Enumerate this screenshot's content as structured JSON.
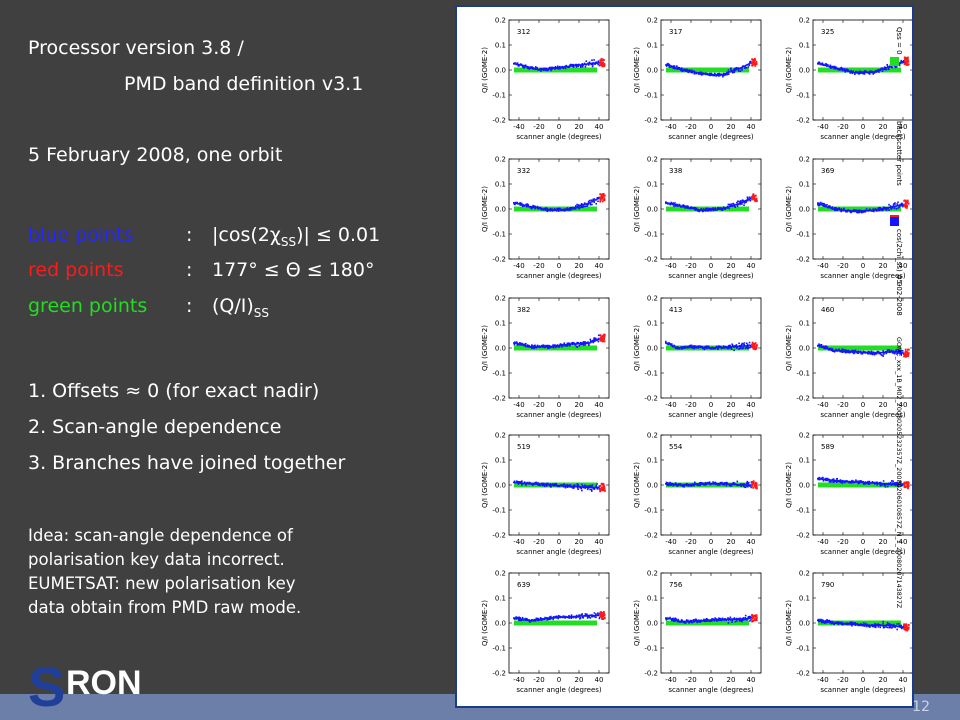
{
  "text": {
    "line1": "Processor version 3.8 /",
    "line2": "PMD band definition v3.1",
    "line3": "5 February 2008, one orbit",
    "legend": [
      {
        "name": "blue points",
        "sep": ":",
        "expr_pre": "|cos(2χ",
        "sub": "SS",
        "expr_post": ")| ≤ 0.01",
        "color": "#2525ff"
      },
      {
        "name": "red points",
        "sep": ":",
        "expr_pre": "177° ≤ Θ ≤ 180°",
        "sub": "",
        "expr_post": "",
        "color": "#ff1a1a"
      },
      {
        "name": "green points",
        "sep": ":",
        "expr_pre": "(Q/I)",
        "sub": "SS",
        "expr_post": "",
        "color": "#22dd22"
      }
    ],
    "points": [
      "1. Offsets ≈ 0  (for exact nadir)",
      "2. Scan-angle dependence",
      "3. Branches have joined together"
    ],
    "idea": [
      "Idea: scan-angle dependence of",
      "polarisation key data incorrect.",
      "EUMETSAT: new polarisation key",
      "data obtain from PMD raw mode."
    ],
    "logo_s": "S",
    "logo_rest": "RON",
    "page_number": "12"
  },
  "chart_data": {
    "type": "scatter",
    "xlabel": "scanner angle (degrees)",
    "ylabel": "Q/I (GOME-2)",
    "xlim": [
      -50,
      50
    ],
    "ylim": [
      -0.2,
      0.2
    ],
    "xticks": [
      -40,
      -20,
      0,
      20,
      40
    ],
    "yticks": [
      -0.2,
      -0.1,
      0.0,
      0.1,
      0.2
    ],
    "side_labels": {
      "legend": [
        "Qss = 0",
        "backscatter points",
        "cos(2chi_ss) = 0"
      ],
      "date": "05-02-2008",
      "file": "GOME_xxx_1B_M02_20080205232357Z_20080206010857Z_N_1_20080207143827Z"
    },
    "legend_colors": [
      "#22dd22",
      "#ff1a1a",
      "#1414ff"
    ],
    "panels": [
      {
        "label": "312",
        "curve": [
          [
            -45,
            0.025
          ],
          [
            -35,
            0.015
          ],
          [
            -20,
            0.0
          ],
          [
            0,
            0.01
          ],
          [
            20,
            0.02
          ],
          [
            40,
            0.03
          ]
        ],
        "green": 0.0
      },
      {
        "label": "317",
        "curve": [
          [
            -45,
            0.02
          ],
          [
            -30,
            0.0
          ],
          [
            -10,
            -0.015
          ],
          [
            10,
            -0.02
          ],
          [
            30,
            0.01
          ],
          [
            40,
            0.03
          ]
        ],
        "green": 0.0
      },
      {
        "label": "325",
        "curve": [
          [
            -45,
            0.025
          ],
          [
            -30,
            0.01
          ],
          [
            -10,
            -0.01
          ],
          [
            10,
            -0.01
          ],
          [
            30,
            0.02
          ],
          [
            40,
            0.035
          ]
        ],
        "green": 0.0
      },
      {
        "label": "332",
        "curve": [
          [
            -45,
            0.025
          ],
          [
            -30,
            0.01
          ],
          [
            -10,
            -0.005
          ],
          [
            10,
            0.0
          ],
          [
            30,
            0.025
          ],
          [
            40,
            0.045
          ]
        ],
        "green": 0.0
      },
      {
        "label": "338",
        "curve": [
          [
            -45,
            0.025
          ],
          [
            -30,
            0.01
          ],
          [
            -10,
            -0.005
          ],
          [
            10,
            0.0
          ],
          [
            30,
            0.025
          ],
          [
            40,
            0.045
          ]
        ],
        "green": 0.0
      },
      {
        "label": "369",
        "curve": [
          [
            -45,
            0.02
          ],
          [
            -30,
            0.0
          ],
          [
            -10,
            -0.01
          ],
          [
            10,
            -0.005
          ],
          [
            30,
            0.01
          ],
          [
            40,
            0.02
          ]
        ],
        "green": 0.0
      },
      {
        "label": "382",
        "curve": [
          [
            -45,
            0.02
          ],
          [
            -30,
            0.005
          ],
          [
            -10,
            0.005
          ],
          [
            10,
            0.015
          ],
          [
            30,
            0.02
          ],
          [
            40,
            0.04
          ]
        ],
        "green": 0.0
      },
      {
        "label": "413",
        "curve": [
          [
            -45,
            0.02
          ],
          [
            -35,
            0.0
          ],
          [
            -20,
            0.005
          ],
          [
            0,
            0.0
          ],
          [
            20,
            0.005
          ],
          [
            40,
            0.01
          ]
        ],
        "green": 0.0
      },
      {
        "label": "460",
        "curve": [
          [
            -45,
            0.01
          ],
          [
            -30,
            -0.01
          ],
          [
            -10,
            -0.015
          ],
          [
            10,
            -0.02
          ],
          [
            30,
            -0.015
          ],
          [
            40,
            -0.02
          ]
        ],
        "green": 0.0
      },
      {
        "label": "519",
        "curve": [
          [
            -45,
            0.01
          ],
          [
            -30,
            0.005
          ],
          [
            -10,
            0.0
          ],
          [
            10,
            -0.005
          ],
          [
            30,
            -0.01
          ],
          [
            40,
            -0.01
          ]
        ],
        "green": 0.0
      },
      {
        "label": "554",
        "curve": [
          [
            -45,
            0.005
          ],
          [
            -30,
            0.0
          ],
          [
            -10,
            0.005
          ],
          [
            10,
            0.005
          ],
          [
            30,
            0.0
          ],
          [
            40,
            0.0
          ]
        ],
        "green": 0.0
      },
      {
        "label": "589",
        "curve": [
          [
            -45,
            0.025
          ],
          [
            -35,
            0.02
          ],
          [
            -20,
            0.015
          ],
          [
            0,
            0.01
          ],
          [
            20,
            0.005
          ],
          [
            40,
            0.0
          ]
        ],
        "green": 0.0
      },
      {
        "label": "639",
        "curve": [
          [
            -45,
            0.02
          ],
          [
            -30,
            0.01
          ],
          [
            -10,
            0.02
          ],
          [
            10,
            0.025
          ],
          [
            30,
            0.03
          ],
          [
            40,
            0.03
          ]
        ],
        "green": 0.0
      },
      {
        "label": "756",
        "curve": [
          [
            -45,
            0.02
          ],
          [
            -30,
            0.005
          ],
          [
            -10,
            0.01
          ],
          [
            10,
            0.015
          ],
          [
            30,
            0.015
          ],
          [
            40,
            0.02
          ]
        ],
        "green": 0.0
      },
      {
        "label": "790",
        "curve": [
          [
            -45,
            0.01
          ],
          [
            -30,
            0.0
          ],
          [
            -10,
            -0.005
          ],
          [
            10,
            -0.01
          ],
          [
            30,
            -0.01
          ],
          [
            40,
            -0.02
          ]
        ],
        "green": 0.0
      }
    ]
  }
}
